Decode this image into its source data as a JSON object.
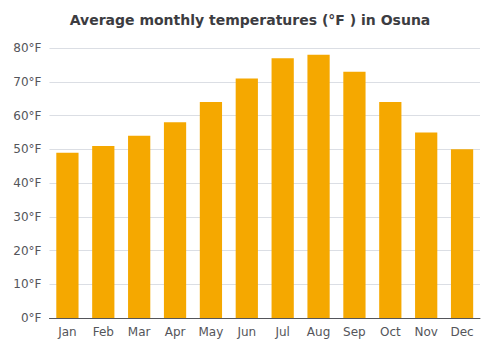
{
  "chart_data": {
    "type": "bar",
    "title": "Average monthly temperatures (°F ) in Osuna",
    "categories": [
      "Jan",
      "Feb",
      "Mar",
      "Apr",
      "May",
      "Jun",
      "Jul",
      "Aug",
      "Sep",
      "Oct",
      "Nov",
      "Dec"
    ],
    "values": [
      49,
      51,
      54,
      58,
      64,
      71,
      77,
      78,
      73,
      64,
      55,
      50
    ],
    "color": "#F5A800",
    "ylim": [
      0,
      80
    ],
    "yticks": [
      {
        "value": 0,
        "label": "0°F"
      },
      {
        "value": 10,
        "label": "10°F"
      },
      {
        "value": 20,
        "label": "20°F"
      },
      {
        "value": 30,
        "label": "30°F"
      },
      {
        "value": 40,
        "label": "40°F"
      },
      {
        "value": 50,
        "label": "50°F"
      },
      {
        "value": 60,
        "label": "60°F"
      },
      {
        "value": 70,
        "label": "70°F"
      },
      {
        "value": 80,
        "label": "80°F"
      }
    ],
    "grid": true
  }
}
